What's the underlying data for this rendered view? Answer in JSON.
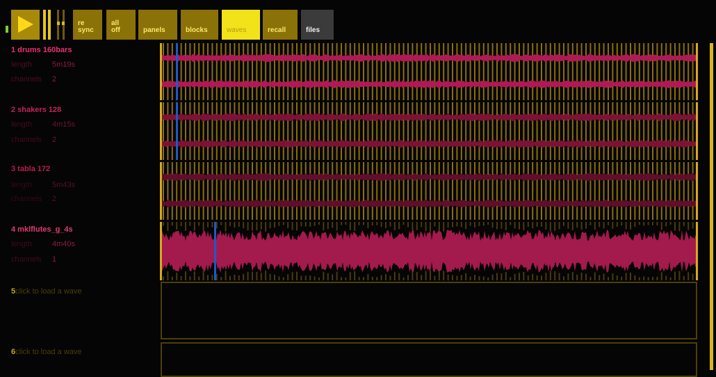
{
  "toolbar": {
    "play_icon": "play-icon",
    "pause_icon": "pause-icon",
    "stop_icon": "stop-icon",
    "buttons": [
      {
        "label": "re\nsync"
      },
      {
        "label": "all\noff"
      },
      {
        "label": "panels"
      },
      {
        "label": "blocks"
      },
      {
        "label": "waves",
        "active": true
      },
      {
        "label": "recall"
      },
      {
        "label": "files"
      }
    ]
  },
  "tracks": [
    {
      "title": "1 drums 160bars",
      "length_label": "length",
      "length": "5m19s",
      "channels_label": "channels",
      "channels": "2",
      "playhead": 0.03,
      "colors": {
        "title": "#e8326e",
        "label": "#4d0d22",
        "value": "#8a1a3a",
        "wave": "#b01957"
      }
    },
    {
      "title": "2 shakers 128",
      "length_label": "length",
      "length": "4m15s",
      "channels_label": "channels",
      "channels": "2",
      "playhead": 0.03,
      "colors": {
        "title": "#c22458",
        "label": "#420a1c",
        "value": "#6f1532",
        "wave": "#7c1238"
      }
    },
    {
      "title": "3 tabla 172",
      "length_label": "length",
      "length": "5m43s",
      "channels_label": "channels",
      "channels": "2",
      "colors": {
        "title": "#b51e4e",
        "label": "#36081a",
        "value": "#54102a",
        "wave": "#5f0e2c"
      }
    },
    {
      "title": "4 mklflutes_g_4s",
      "length_label": "length",
      "length": "4m40s",
      "channels_label": "channels",
      "channels": "1",
      "playhead": 0.1,
      "colors": {
        "title": "#e23a70",
        "label": "#3d0c1c",
        "value": "#8e1c3e",
        "wave": "#a31a4c"
      }
    }
  ],
  "empty_slots": [
    {
      "number": "5",
      "text": "click to load a wave"
    },
    {
      "number": "6",
      "text": "click to load a wave"
    }
  ]
}
